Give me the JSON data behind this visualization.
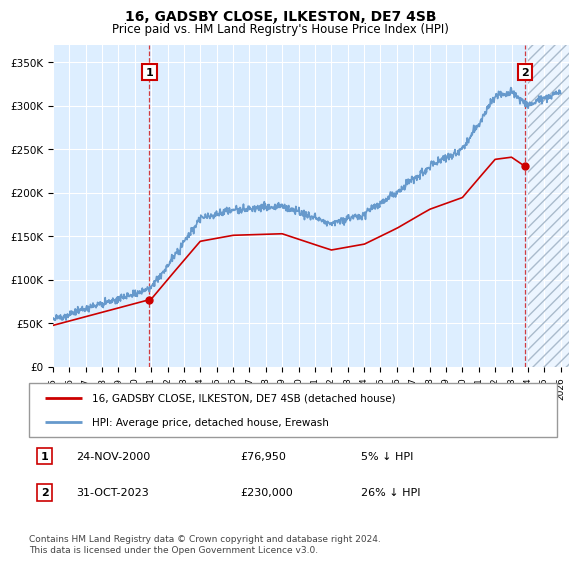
{
  "title": "16, GADSBY CLOSE, ILKESTON, DE7 4SB",
  "subtitle": "Price paid vs. HM Land Registry's House Price Index (HPI)",
  "ytick_values": [
    0,
    50000,
    100000,
    150000,
    200000,
    250000,
    300000,
    350000
  ],
  "ylim": [
    0,
    370000
  ],
  "xlim_start": 1995.0,
  "xlim_end": 2026.5,
  "xticks": [
    1995,
    1996,
    1997,
    1998,
    1999,
    2000,
    2001,
    2002,
    2003,
    2004,
    2005,
    2006,
    2007,
    2008,
    2009,
    2010,
    2011,
    2012,
    2013,
    2014,
    2015,
    2016,
    2017,
    2018,
    2019,
    2020,
    2021,
    2022,
    2023,
    2024,
    2025,
    2026
  ],
  "hpi_color": "#6699cc",
  "price_color": "#cc0000",
  "marker1_date": 2000.9,
  "marker1_price": 76950,
  "marker2_date": 2023.83,
  "marker2_price": 230000,
  "legend_line1": "16, GADSBY CLOSE, ILKESTON, DE7 4SB (detached house)",
  "legend_line2": "HPI: Average price, detached house, Erewash",
  "footnote": "Contains HM Land Registry data © Crown copyright and database right 2024.\nThis data is licensed under the Open Government Licence v3.0.",
  "bg_color": "#ddeeff",
  "future_start": 2024.0,
  "row1_date": "24-NOV-2000",
  "row1_price": "£76,950",
  "row1_pct": "5% ↓ HPI",
  "row2_date": "31-OCT-2023",
  "row2_price": "£230,000",
  "row2_pct": "26% ↓ HPI"
}
